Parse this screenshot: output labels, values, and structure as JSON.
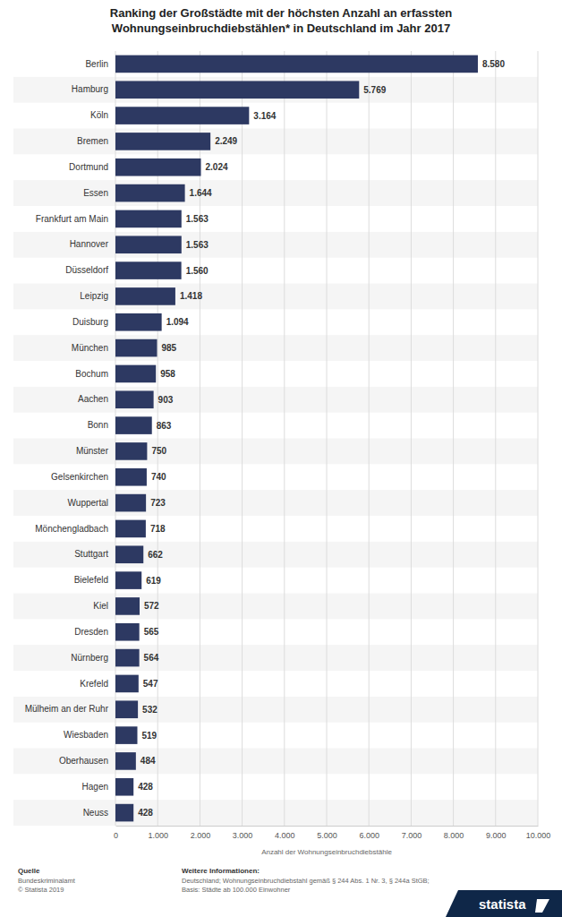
{
  "chart_data": {
    "type": "bar",
    "orientation": "horizontal",
    "title": "Ranking der Großstädte mit der höchsten Anzahl an erfassten Wohnungseinbruchdiebstählen* in Deutschland im Jahr 2017",
    "x_label": "Anzahl der Wohnungseinbruchdiebstähle",
    "categories": [
      "Berlin",
      "Hamburg",
      "Köln",
      "Bremen",
      "Dortmund",
      "Essen",
      "Frankfurt am Main",
      "Hannover",
      "Düsseldorf",
      "Leipzig",
      "Duisburg",
      "München",
      "Bochum",
      "Aachen",
      "Bonn",
      "Münster",
      "Gelsenkirchen",
      "Wuppertal",
      "Mönchengladbach",
      "Stuttgart",
      "Bielefeld",
      "Kiel",
      "Dresden",
      "Nürnberg",
      "Krefeld",
      "Mülheim an der Ruhr",
      "Wiesbaden",
      "Oberhausen",
      "Hagen",
      "Neuss"
    ],
    "values": [
      8580,
      5769,
      3164,
      2249,
      2024,
      1644,
      1563,
      1563,
      1560,
      1418,
      1094,
      985,
      958,
      903,
      863,
      750,
      740,
      723,
      718,
      662,
      619,
      572,
      565,
      564,
      547,
      532,
      519,
      484,
      428,
      428
    ],
    "value_labels": [
      "8.580",
      "5.769",
      "3.164",
      "2.249",
      "2.024",
      "1.644",
      "1.563",
      "1.563",
      "1.560",
      "1.418",
      "1.094",
      "985",
      "958",
      "903",
      "863",
      "750",
      "740",
      "723",
      "718",
      "662",
      "619",
      "572",
      "565",
      "564",
      "547",
      "532",
      "519",
      "484",
      "428",
      "428"
    ],
    "data_labels": true,
    "color": "#2d3962",
    "grid": true,
    "xlim": [
      0,
      10000
    ],
    "xticks": [
      0,
      {
        "value": 1000,
        "label": "1.000"
      },
      {
        "value": 2000,
        "label": "2.000"
      },
      {
        "value": 3000,
        "label": "3.000"
      },
      {
        "value": 4000,
        "label": "4.000"
      },
      {
        "value": 5000,
        "label": "5.000"
      },
      {
        "value": 6000,
        "label": "6.000"
      },
      {
        "value": 7000,
        "label": "7.000"
      },
      {
        "value": 8000,
        "label": "8.000"
      },
      {
        "value": 9000,
        "label": "9.000"
      },
      {
        "value": 10000,
        "label": "10.000"
      }
    ],
    "source_label": "Quelle",
    "source": "Bundeskriminalamt",
    "copyright": "© Statista 2019",
    "info_label": "Weitere Informationen:",
    "info": "Deutschland; Wohnungseinbruchdiebstahl gemäß § 244 Abs. 1 Nr. 3, § 244a StGB; Basis: Städte ab 100.000 Einwohner",
    "logo": "statista"
  }
}
